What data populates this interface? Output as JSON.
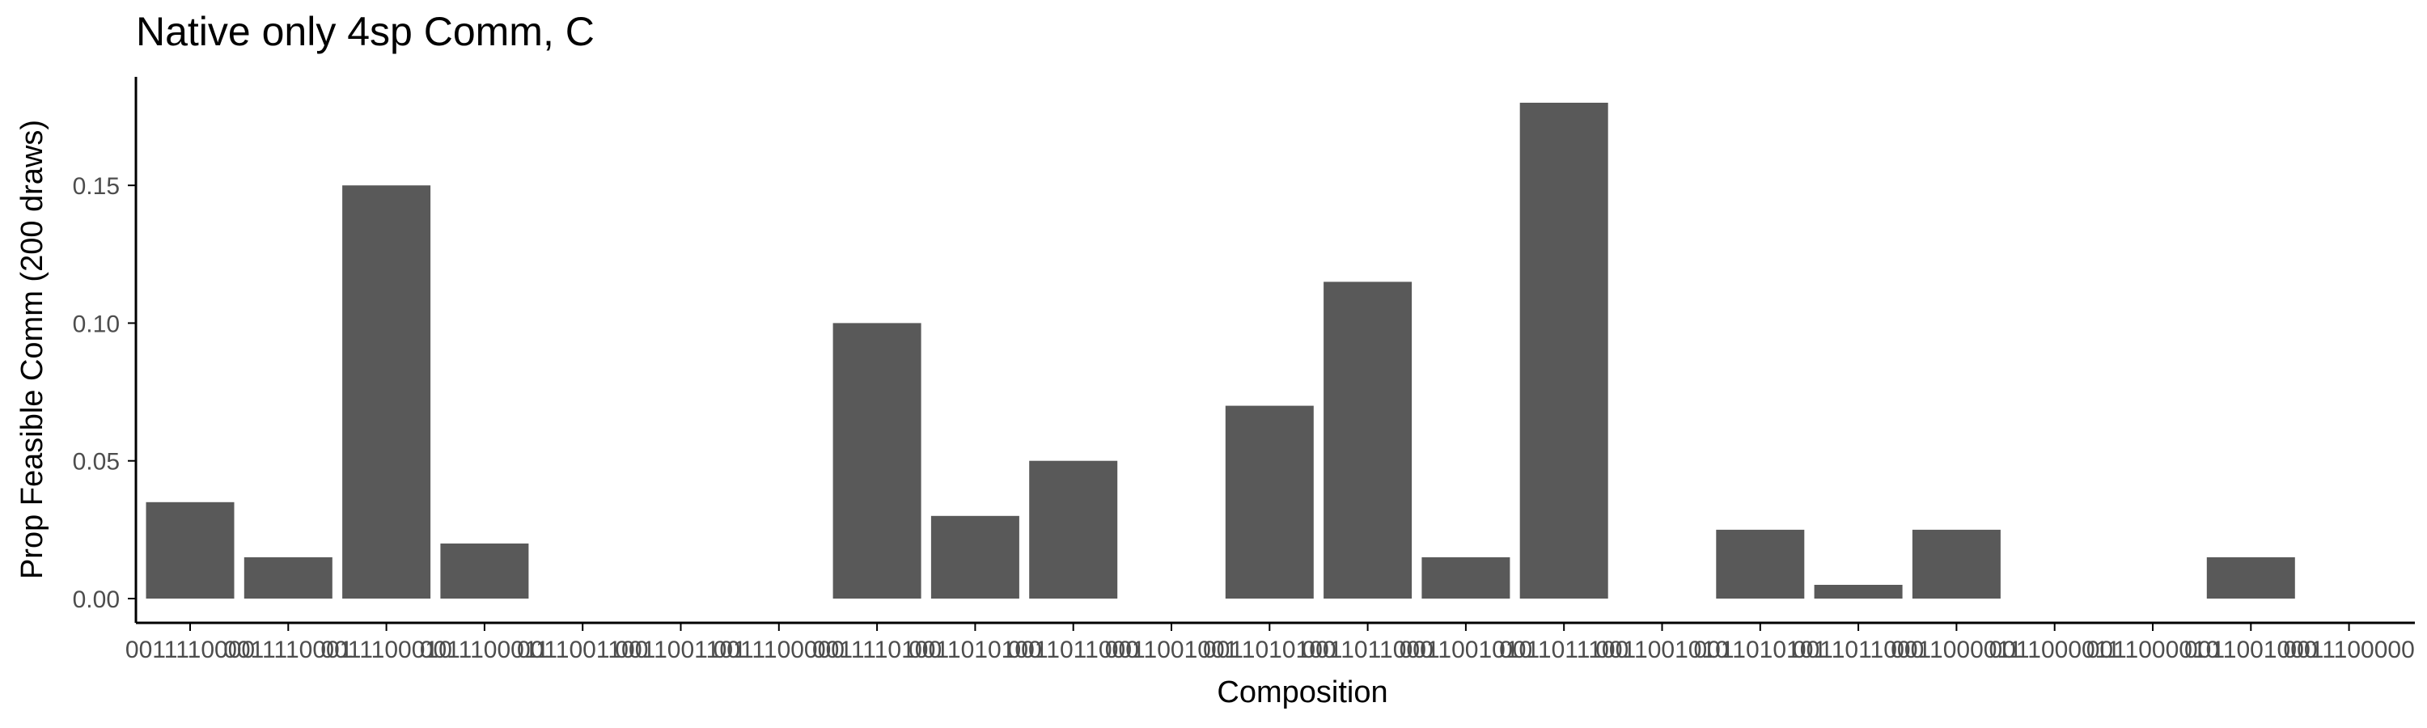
{
  "chart_data": {
    "type": "bar",
    "title": "Native only 4sp Comm, C",
    "xlabel": "Composition",
    "ylabel": "Prop Feasible Comm (200 draws)",
    "categories": [
      "0011110000",
      "0011110001",
      "0011100010",
      "0011100011",
      "0011001100",
      "0011001101",
      "0011100000",
      "0011110100",
      "0011010100",
      "0011011000",
      "0011001001",
      "0011010100",
      "0011011000",
      "0011001010",
      "0011011100",
      "0011001010",
      "0011010101",
      "0011011000",
      "0011000011",
      "0011000011",
      "0011000010",
      "0011001000",
      "0011100000"
    ],
    "tick_labels": [
      "0011110000",
      "0011110001",
      "0011100010",
      "0011100011",
      "0011001100",
      "0011001101",
      "0011100000",
      "0011110100",
      "0011010100",
      "0011011000",
      "0011001001",
      "0011010100",
      "0011011000",
      "0011001010",
      "0011011100",
      "0011001010",
      "0011010101",
      "0011011000",
      "0011000011",
      "0011000011",
      "0011000010",
      "0011001000",
      "0011100000"
    ],
    "values": [
      0.035,
      0.015,
      0.15,
      0.02,
      0,
      0,
      0,
      0.1,
      0.03,
      0.05,
      0,
      0.07,
      0.115,
      0.015,
      0.18,
      0,
      0.025,
      0.005,
      0.025,
      0,
      0,
      0.015,
      0
    ],
    "ylim": [
      0,
      0.19
    ],
    "yticks": [
      0.0,
      0.05,
      0.1,
      0.15
    ],
    "ytick_labels": [
      "0.00",
      "0.05",
      "0.10",
      "0.15"
    ],
    "grid": false,
    "bar_color": "#595959",
    "axis_color": "#000000",
    "tick_label_color": "#4d4d4d"
  }
}
